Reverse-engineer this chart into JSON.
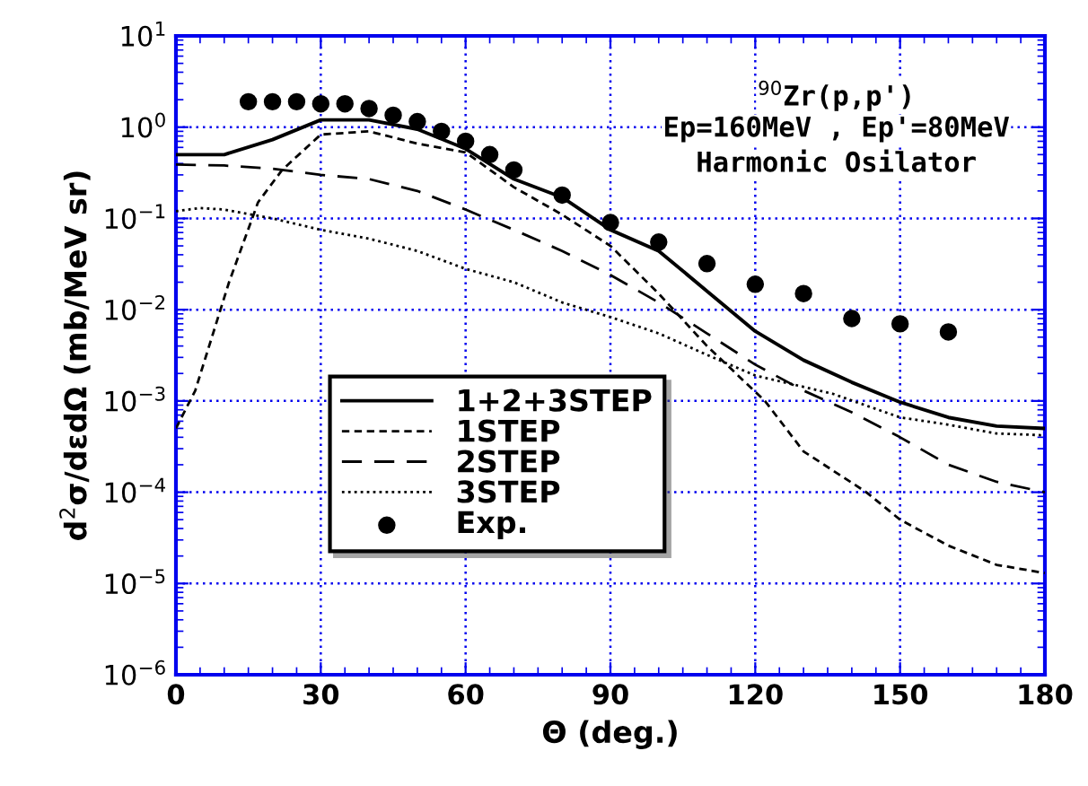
{
  "chart_data": {
    "type": "line",
    "xlabel": "Θ (deg.)",
    "ylabel": "d$^{2}$σ/dεdΩ (mb/MeV sr)",
    "annotations": [
      "$^{90}$Zr(p,p')",
      "Ep=160MeV , Ep'=80MeV",
      "Harmonic Osilator"
    ],
    "log": "y",
    "grid": true,
    "legend": "bottom left",
    "xlim": [
      0,
      180
    ],
    "xticks": [
      0,
      30,
      60,
      90,
      120,
      150,
      180
    ],
    "ylim": [
      1e-06,
      10
    ],
    "yticks": [
      {
        "value": 1e-06,
        "label": "10$^{−6}$"
      },
      {
        "value": 1e-05,
        "label": "10$^{−5}$"
      },
      {
        "value": 0.0001,
        "label": "10$^{−4}$"
      },
      {
        "value": 0.001,
        "label": "10$^{−3}$"
      },
      {
        "value": 0.01,
        "label": "10$^{−2}$"
      },
      {
        "value": 0.1,
        "label": "10$^{−1}$"
      },
      {
        "value": 1,
        "label": "10$^{0}$"
      },
      {
        "value": 10,
        "label": "10$^{1}$"
      }
    ],
    "series": [
      {
        "name": "1+2+3STEP",
        "color": "#000000",
        "line_style": "solid",
        "x": [
          0,
          10,
          20,
          30,
          40,
          50,
          60,
          70,
          80,
          90,
          100,
          110,
          120,
          130,
          140,
          150,
          160,
          170,
          180
        ],
        "values": [
          0.5,
          0.5,
          0.73,
          1.2,
          1.2,
          0.95,
          0.58,
          0.27,
          0.17,
          0.075,
          0.044,
          0.016,
          0.0058,
          0.0028,
          0.0016,
          0.00097,
          0.00066,
          0.00053,
          0.0005
        ]
      },
      {
        "name": "1STEP",
        "color": "#000000",
        "line_style": "dashed",
        "x": [
          0,
          4,
          11,
          17,
          22,
          30,
          40,
          50,
          60,
          70,
          80,
          90,
          100,
          110,
          122,
          130,
          143,
          150,
          160,
          170,
          180
        ],
        "values": [
          0.0005,
          0.0013,
          0.02,
          0.15,
          0.34,
          0.83,
          0.9,
          0.66,
          0.53,
          0.22,
          0.11,
          0.05,
          0.015,
          0.004,
          0.001,
          0.00028,
          0.0001,
          5e-05,
          2.6e-05,
          1.6e-05,
          1.3e-05
        ]
      },
      {
        "name": "2STEP",
        "color": "#000000",
        "line_style": "longdash",
        "x": [
          0,
          10,
          20,
          30,
          40,
          50,
          60,
          70,
          80,
          90,
          100,
          110,
          120,
          130,
          140,
          150,
          160,
          170,
          180
        ],
        "values": [
          0.39,
          0.38,
          0.35,
          0.3,
          0.27,
          0.2,
          0.125,
          0.075,
          0.044,
          0.024,
          0.012,
          0.0055,
          0.0025,
          0.0013,
          0.00075,
          0.0004,
          0.0002,
          0.00013,
          0.0001
        ]
      },
      {
        "name": "3STEP",
        "color": "#000000",
        "line_style": "dotted",
        "x": [
          0,
          5,
          10,
          20,
          30,
          40,
          50,
          60,
          70,
          80,
          90,
          100,
          110,
          120,
          136,
          150,
          160,
          170,
          180
        ],
        "values": [
          0.12,
          0.13,
          0.125,
          0.1,
          0.075,
          0.06,
          0.044,
          0.028,
          0.02,
          0.012,
          0.0083,
          0.0055,
          0.0032,
          0.0019,
          0.0012,
          0.00066,
          0.00055,
          0.00044,
          0.00042
        ]
      },
      {
        "name": "Exp.",
        "type": "scatter",
        "marker": "circle",
        "color": "#000000",
        "x": [
          15,
          20,
          25,
          30,
          35,
          40,
          45,
          50,
          55,
          60,
          65,
          70,
          80,
          90,
          100,
          110,
          120,
          130,
          140,
          150,
          160
        ],
        "values": [
          1.9,
          1.9,
          1.9,
          1.8,
          1.8,
          1.6,
          1.35,
          1.15,
          0.9,
          0.7,
          0.5,
          0.34,
          0.18,
          0.09,
          0.055,
          0.032,
          0.019,
          0.015,
          0.008,
          0.007,
          0.0057
        ]
      }
    ]
  }
}
